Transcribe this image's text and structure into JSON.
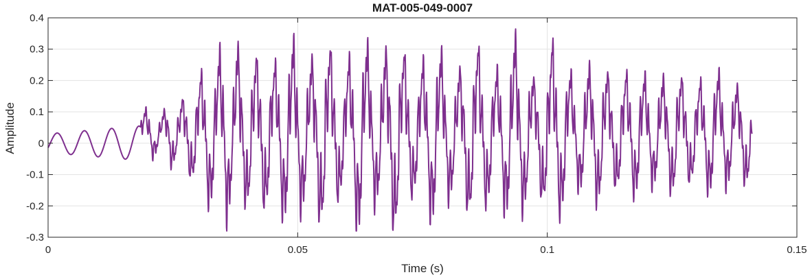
{
  "chart_data": {
    "type": "line",
    "title": "MAT-005-049-0007",
    "xlabel": "Time (s)",
    "ylabel": "Amplitude",
    "xlim": [
      0,
      0.15
    ],
    "ylim": [
      -0.3,
      0.4
    ],
    "xticks": [
      0,
      0.05,
      0.1,
      0.15
    ],
    "xtick_labels": [
      "0",
      "0.05",
      "0.1",
      "0.15"
    ],
    "yticks": [
      -0.3,
      -0.2,
      -0.1,
      0,
      0.1,
      0.2,
      0.3,
      0.4
    ],
    "ytick_labels": [
      "-0.3",
      "-0.2",
      "-0.1",
      "0",
      "0.1",
      "0.2",
      "0.3",
      "0.4"
    ],
    "grid": true,
    "line_color": "#7e2f8e",
    "series": [
      {
        "x": [
          0,
          0.0027,
          0.0055,
          0.0082,
          0.011,
          0.0137,
          0.0164,
          0.0185,
          0.0205,
          0.0225,
          0.0245,
          0.026,
          0.0275,
          0.029,
          0.0305,
          0.032,
          0.0335,
          0.0355,
          0.037,
          0.0378,
          0.0395,
          0.0425,
          0.0455,
          0.0485,
          0.052,
          0.0555,
          0.059,
          0.0625,
          0.066,
          0.0695,
          0.0735,
          0.0775,
          0.0815,
          0.0855,
          0.0895,
          0.0935,
          0.0975,
          0.1015,
          0.1055,
          0.1095,
          0.1135,
          0.1175,
          0.1215,
          0.1255,
          0.1295,
          0.1335,
          0.1375,
          0.1405,
          0.141
        ],
        "y": [
          -0.03,
          0.035,
          -0.045,
          0.045,
          -0.05,
          0.055,
          -0.05,
          0.08,
          -0.1,
          0.06,
          -0.13,
          0.1,
          -0.15,
          0.18,
          -0.22,
          0.27,
          -0.27,
          0.35,
          -0.24,
          0.33,
          -0.27,
          0.3,
          -0.26,
          0.36,
          -0.25,
          0.37,
          -0.22,
          0.38,
          -0.25,
          0.38,
          -0.22,
          0.34,
          -0.21,
          0.35,
          -0.22,
          0.36,
          -0.2,
          0.36,
          -0.19,
          0.27,
          -0.21,
          0.24,
          -0.19,
          0.23,
          -0.18,
          0.24,
          -0.17,
          0.2,
          0.0
        ]
      }
    ]
  }
}
